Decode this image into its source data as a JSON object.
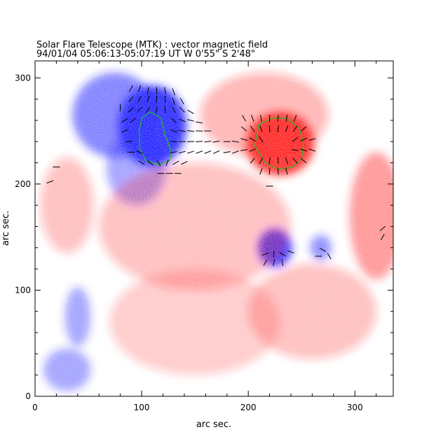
{
  "chart_data": {
    "type": "heatmap",
    "title": "Solar Flare Telescope (MTK) : vector magnetic field",
    "subtitle": "94/01/04  05:06:13-05:07:19 UT    W 0'55\"  S 2'48\"",
    "xlabel": "arc sec.",
    "ylabel": "arc sec.",
    "xlim": [
      0,
      336
    ],
    "ylim": [
      0,
      316
    ],
    "x_ticks": [
      0,
      100,
      200,
      300
    ],
    "y_ticks": [
      0,
      100,
      200,
      300
    ],
    "colors": {
      "positive": "#ff2020",
      "negative": "#2020ff",
      "contour": "#20c020",
      "vector": "#000000"
    },
    "regions": [
      {
        "polarity": "negative",
        "cx": 110,
        "cy": 255,
        "rx": 32,
        "ry": 38,
        "strength": 1.0
      },
      {
        "polarity": "negative",
        "cx": 75,
        "cy": 265,
        "rx": 40,
        "ry": 40,
        "strength": 0.6
      },
      {
        "polarity": "negative",
        "cx": 95,
        "cy": 215,
        "rx": 28,
        "ry": 35,
        "strength": 0.45
      },
      {
        "polarity": "negative",
        "cx": 225,
        "cy": 140,
        "rx": 16,
        "ry": 18,
        "strength": 0.95
      },
      {
        "polarity": "negative",
        "cx": 268,
        "cy": 140,
        "rx": 10,
        "ry": 12,
        "strength": 0.55
      },
      {
        "polarity": "negative",
        "cx": 40,
        "cy": 75,
        "rx": 12,
        "ry": 28,
        "strength": 0.45
      },
      {
        "polarity": "negative",
        "cx": 30,
        "cy": 25,
        "rx": 22,
        "ry": 20,
        "strength": 0.45
      },
      {
        "polarity": "positive",
        "cx": 230,
        "cy": 238,
        "rx": 32,
        "ry": 30,
        "strength": 1.0
      },
      {
        "polarity": "positive",
        "cx": 215,
        "cy": 265,
        "rx": 60,
        "ry": 40,
        "strength": 0.35
      },
      {
        "polarity": "positive",
        "cx": 150,
        "cy": 160,
        "rx": 90,
        "ry": 60,
        "strength": 0.3
      },
      {
        "polarity": "positive",
        "cx": 320,
        "cy": 170,
        "rx": 25,
        "ry": 60,
        "strength": 0.5
      },
      {
        "polarity": "positive",
        "cx": 260,
        "cy": 80,
        "rx": 60,
        "ry": 45,
        "strength": 0.3
      },
      {
        "polarity": "positive",
        "cx": 150,
        "cy": 70,
        "rx": 80,
        "ry": 50,
        "strength": 0.25
      },
      {
        "polarity": "positive",
        "cx": 30,
        "cy": 180,
        "rx": 25,
        "ry": 45,
        "strength": 0.3
      }
    ],
    "contours": [
      {
        "color": "contour",
        "points": [
          [
            100,
            262
          ],
          [
            108,
            268
          ],
          [
            118,
            262
          ],
          [
            122,
            246
          ],
          [
            128,
            230
          ],
          [
            126,
            222
          ],
          [
            116,
            218
          ],
          [
            104,
            222
          ],
          [
            98,
            234
          ],
          [
            98,
            252
          ]
        ]
      },
      {
        "color": "contour",
        "points": [
          [
            210,
            256
          ],
          [
            222,
            262
          ],
          [
            236,
            262
          ],
          [
            248,
            252
          ],
          [
            252,
            238
          ],
          [
            250,
            224
          ],
          [
            242,
            216
          ],
          [
            228,
            214
          ],
          [
            216,
            220
          ],
          [
            206,
            236
          ]
        ]
      }
    ],
    "vectors": [
      {
        "x": 90,
        "y": 290,
        "angle": 60
      },
      {
        "x": 98,
        "y": 290,
        "angle": 70
      },
      {
        "x": 106,
        "y": 288,
        "angle": 80
      },
      {
        "x": 114,
        "y": 288,
        "angle": 90
      },
      {
        "x": 122,
        "y": 288,
        "angle": 100
      },
      {
        "x": 130,
        "y": 287,
        "angle": 110
      },
      {
        "x": 90,
        "y": 280,
        "angle": 50
      },
      {
        "x": 98,
        "y": 280,
        "angle": 60
      },
      {
        "x": 106,
        "y": 280,
        "angle": 70
      },
      {
        "x": 114,
        "y": 280,
        "angle": 85
      },
      {
        "x": 122,
        "y": 280,
        "angle": 95
      },
      {
        "x": 130,
        "y": 278,
        "angle": 110
      },
      {
        "x": 138,
        "y": 278,
        "angle": 120
      },
      {
        "x": 90,
        "y": 270,
        "angle": 40
      },
      {
        "x": 98,
        "y": 270,
        "angle": 50
      },
      {
        "x": 106,
        "y": 270,
        "angle": 60
      },
      {
        "x": 114,
        "y": 270,
        "angle": 80
      },
      {
        "x": 122,
        "y": 270,
        "angle": 100
      },
      {
        "x": 130,
        "y": 270,
        "angle": 120
      },
      {
        "x": 138,
        "y": 270,
        "angle": 135
      },
      {
        "x": 146,
        "y": 268,
        "angle": 150
      },
      {
        "x": 84,
        "y": 260,
        "angle": 30
      },
      {
        "x": 92,
        "y": 260,
        "angle": 40
      },
      {
        "x": 130,
        "y": 260,
        "angle": 140
      },
      {
        "x": 138,
        "y": 260,
        "angle": 155
      },
      {
        "x": 146,
        "y": 260,
        "angle": 165
      },
      {
        "x": 154,
        "y": 258,
        "angle": 170
      },
      {
        "x": 84,
        "y": 250,
        "angle": 20
      },
      {
        "x": 130,
        "y": 250,
        "angle": 160
      },
      {
        "x": 138,
        "y": 250,
        "angle": 170
      },
      {
        "x": 146,
        "y": 250,
        "angle": 175
      },
      {
        "x": 154,
        "y": 250,
        "angle": 178
      },
      {
        "x": 162,
        "y": 250,
        "angle": 180
      },
      {
        "x": 88,
        "y": 240,
        "angle": 10
      },
      {
        "x": 130,
        "y": 240,
        "angle": 175
      },
      {
        "x": 138,
        "y": 240,
        "angle": 180
      },
      {
        "x": 146,
        "y": 240,
        "angle": 182
      },
      {
        "x": 154,
        "y": 240,
        "angle": 185
      },
      {
        "x": 162,
        "y": 240,
        "angle": 188
      },
      {
        "x": 170,
        "y": 240,
        "angle": 190
      },
      {
        "x": 90,
        "y": 230,
        "angle": 0
      },
      {
        "x": 98,
        "y": 230,
        "angle": 340
      },
      {
        "x": 130,
        "y": 230,
        "angle": 190
      },
      {
        "x": 138,
        "y": 230,
        "angle": 195
      },
      {
        "x": 146,
        "y": 230,
        "angle": 198
      },
      {
        "x": 154,
        "y": 230,
        "angle": 200
      },
      {
        "x": 162,
        "y": 230,
        "angle": 202
      },
      {
        "x": 170,
        "y": 230,
        "angle": 205
      },
      {
        "x": 100,
        "y": 220,
        "angle": 330
      },
      {
        "x": 108,
        "y": 220,
        "angle": 320
      },
      {
        "x": 116,
        "y": 220,
        "angle": 300
      },
      {
        "x": 124,
        "y": 220,
        "angle": 250
      },
      {
        "x": 132,
        "y": 220,
        "angle": 210
      },
      {
        "x": 140,
        "y": 220,
        "angle": 205
      },
      {
        "x": 118,
        "y": 210,
        "angle": 0
      },
      {
        "x": 126,
        "y": 210,
        "angle": 0
      },
      {
        "x": 134,
        "y": 210,
        "angle": 0
      },
      {
        "x": 180,
        "y": 240,
        "angle": 0
      },
      {
        "x": 188,
        "y": 240,
        "angle": 350
      },
      {
        "x": 180,
        "y": 230,
        "angle": 10
      },
      {
        "x": 188,
        "y": 230,
        "angle": 20
      },
      {
        "x": 196,
        "y": 262,
        "angle": 300
      },
      {
        "x": 204,
        "y": 262,
        "angle": 290
      },
      {
        "x": 212,
        "y": 262,
        "angle": 280
      },
      {
        "x": 220,
        "y": 262,
        "angle": 270
      },
      {
        "x": 228,
        "y": 262,
        "angle": 265
      },
      {
        "x": 236,
        "y": 262,
        "angle": 260
      },
      {
        "x": 244,
        "y": 262,
        "angle": 250
      },
      {
        "x": 196,
        "y": 252,
        "angle": 320
      },
      {
        "x": 204,
        "y": 252,
        "angle": 305
      },
      {
        "x": 212,
        "y": 252,
        "angle": 290
      },
      {
        "x": 220,
        "y": 252,
        "angle": 275
      },
      {
        "x": 228,
        "y": 252,
        "angle": 265
      },
      {
        "x": 236,
        "y": 252,
        "angle": 250
      },
      {
        "x": 244,
        "y": 252,
        "angle": 235
      },
      {
        "x": 252,
        "y": 252,
        "angle": 220
      },
      {
        "x": 196,
        "y": 242,
        "angle": 345
      },
      {
        "x": 204,
        "y": 242,
        "angle": 330
      },
      {
        "x": 212,
        "y": 242,
        "angle": 305
      },
      {
        "x": 244,
        "y": 242,
        "angle": 220
      },
      {
        "x": 252,
        "y": 242,
        "angle": 205
      },
      {
        "x": 260,
        "y": 242,
        "angle": 195
      },
      {
        "x": 196,
        "y": 232,
        "angle": 10
      },
      {
        "x": 204,
        "y": 232,
        "angle": 20
      },
      {
        "x": 244,
        "y": 232,
        "angle": 170
      },
      {
        "x": 252,
        "y": 232,
        "angle": 165
      },
      {
        "x": 260,
        "y": 232,
        "angle": 160
      },
      {
        "x": 204,
        "y": 222,
        "angle": 50
      },
      {
        "x": 212,
        "y": 222,
        "angle": 60
      },
      {
        "x": 220,
        "y": 222,
        "angle": 80
      },
      {
        "x": 228,
        "y": 222,
        "angle": 95
      },
      {
        "x": 236,
        "y": 222,
        "angle": 110
      },
      {
        "x": 244,
        "y": 222,
        "angle": 130
      },
      {
        "x": 252,
        "y": 222,
        "angle": 140
      },
      {
        "x": 212,
        "y": 212,
        "angle": 70
      },
      {
        "x": 220,
        "y": 212,
        "angle": 85
      },
      {
        "x": 228,
        "y": 212,
        "angle": 95
      },
      {
        "x": 236,
        "y": 212,
        "angle": 105
      },
      {
        "x": 216,
        "y": 126,
        "angle": 60
      },
      {
        "x": 224,
        "y": 126,
        "angle": 80
      },
      {
        "x": 232,
        "y": 126,
        "angle": 100
      },
      {
        "x": 216,
        "y": 134,
        "angle": 20
      },
      {
        "x": 224,
        "y": 134,
        "angle": 90
      },
      {
        "x": 232,
        "y": 134,
        "angle": 150
      },
      {
        "x": 240,
        "y": 136,
        "angle": 160
      },
      {
        "x": 270,
        "y": 138,
        "angle": 330
      },
      {
        "x": 276,
        "y": 132,
        "angle": 300
      },
      {
        "x": 266,
        "y": 132,
        "angle": 0
      },
      {
        "x": 20,
        "y": 216,
        "angle": 0
      },
      {
        "x": 14,
        "y": 202,
        "angle": 20
      },
      {
        "x": 326,
        "y": 158,
        "angle": 40
      },
      {
        "x": 326,
        "y": 150,
        "angle": 60
      },
      {
        "x": 220,
        "y": 198,
        "angle": 0
      },
      {
        "x": 80,
        "y": 272,
        "angle": 270
      }
    ]
  }
}
